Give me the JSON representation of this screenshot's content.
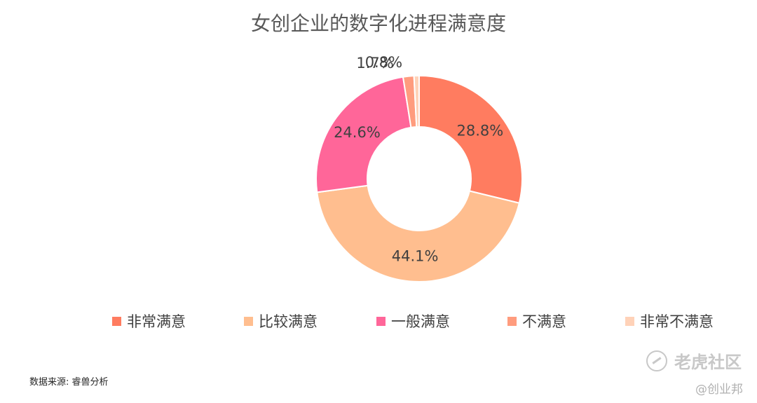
{
  "chart_data": {
    "type": "pie",
    "title": "女创企业的数字化进程满意度",
    "categories": [
      "非常满意",
      "比较满意",
      "一般满意",
      "不满意",
      "非常不满意"
    ],
    "values": [
      28.8,
      44.1,
      24.6,
      1.7,
      0.8
    ],
    "value_labels": [
      "28.8%",
      "44.1%",
      "24.6%",
      "1.7%",
      "0.8%"
    ],
    "colors": [
      "#ff7c60",
      "#ffbe8f",
      "#ff6699",
      "#ff9c7e",
      "#ffd2b8"
    ],
    "donut": true,
    "legend_position": "bottom"
  },
  "footer": {
    "source": "数据来源: 睿兽分析"
  },
  "watermark": {
    "brand": "老虎社区",
    "sub": "@创业邦"
  }
}
